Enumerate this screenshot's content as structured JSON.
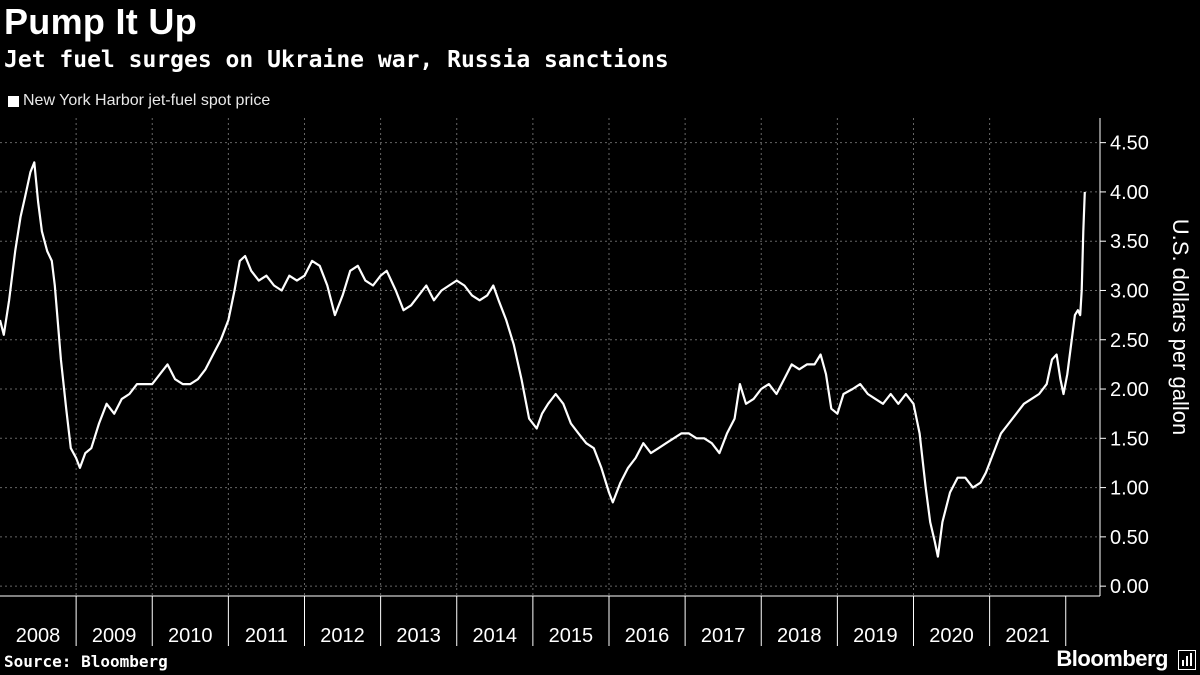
{
  "header": {
    "title": "Pump It Up",
    "subtitle": "Jet fuel surges on Ukraine war, Russia sanctions"
  },
  "footer": {
    "source": "Source: Bloomberg",
    "brand": "Bloomberg"
  },
  "colors": {
    "background": "#000000",
    "line": "#ffffff",
    "grid": "#666666"
  },
  "chart_data": {
    "type": "line",
    "series": [
      {
        "name": "New York Harbor jet-fuel spot price",
        "points": [
          [
            2008.0,
            2.7
          ],
          [
            2008.05,
            2.55
          ],
          [
            2008.12,
            2.9
          ],
          [
            2008.2,
            3.4
          ],
          [
            2008.27,
            3.75
          ],
          [
            2008.33,
            3.95
          ],
          [
            2008.4,
            4.2
          ],
          [
            2008.45,
            4.3
          ],
          [
            2008.5,
            3.9
          ],
          [
            2008.55,
            3.6
          ],
          [
            2008.62,
            3.4
          ],
          [
            2008.68,
            3.3
          ],
          [
            2008.72,
            3.05
          ],
          [
            2008.8,
            2.3
          ],
          [
            2008.87,
            1.8
          ],
          [
            2008.93,
            1.4
          ],
          [
            2009.0,
            1.3
          ],
          [
            2009.05,
            1.2
          ],
          [
            2009.12,
            1.35
          ],
          [
            2009.2,
            1.4
          ],
          [
            2009.3,
            1.65
          ],
          [
            2009.4,
            1.85
          ],
          [
            2009.5,
            1.75
          ],
          [
            2009.6,
            1.9
          ],
          [
            2009.7,
            1.95
          ],
          [
            2009.8,
            2.05
          ],
          [
            2009.9,
            2.05
          ],
          [
            2010.0,
            2.05
          ],
          [
            2010.1,
            2.15
          ],
          [
            2010.2,
            2.25
          ],
          [
            2010.3,
            2.1
          ],
          [
            2010.4,
            2.05
          ],
          [
            2010.5,
            2.05
          ],
          [
            2010.6,
            2.1
          ],
          [
            2010.7,
            2.2
          ],
          [
            2010.8,
            2.35
          ],
          [
            2010.9,
            2.5
          ],
          [
            2011.0,
            2.7
          ],
          [
            2011.08,
            3.0
          ],
          [
            2011.15,
            3.3
          ],
          [
            2011.22,
            3.35
          ],
          [
            2011.3,
            3.2
          ],
          [
            2011.4,
            3.1
          ],
          [
            2011.5,
            3.15
          ],
          [
            2011.6,
            3.05
          ],
          [
            2011.7,
            3.0
          ],
          [
            2011.8,
            3.15
          ],
          [
            2011.9,
            3.1
          ],
          [
            2012.0,
            3.15
          ],
          [
            2012.1,
            3.3
          ],
          [
            2012.2,
            3.25
          ],
          [
            2012.3,
            3.05
          ],
          [
            2012.4,
            2.75
          ],
          [
            2012.5,
            2.95
          ],
          [
            2012.6,
            3.2
          ],
          [
            2012.7,
            3.25
          ],
          [
            2012.8,
            3.1
          ],
          [
            2012.9,
            3.05
          ],
          [
            2013.0,
            3.15
          ],
          [
            2013.08,
            3.2
          ],
          [
            2013.2,
            3.0
          ],
          [
            2013.3,
            2.8
          ],
          [
            2013.4,
            2.85
          ],
          [
            2013.5,
            2.95
          ],
          [
            2013.6,
            3.05
          ],
          [
            2013.7,
            2.9
          ],
          [
            2013.8,
            3.0
          ],
          [
            2013.9,
            3.05
          ],
          [
            2014.0,
            3.1
          ],
          [
            2014.1,
            3.05
          ],
          [
            2014.2,
            2.95
          ],
          [
            2014.3,
            2.9
          ],
          [
            2014.4,
            2.95
          ],
          [
            2014.48,
            3.05
          ],
          [
            2014.55,
            2.9
          ],
          [
            2014.65,
            2.7
          ],
          [
            2014.75,
            2.45
          ],
          [
            2014.85,
            2.1
          ],
          [
            2014.95,
            1.7
          ],
          [
            2015.05,
            1.6
          ],
          [
            2015.12,
            1.75
          ],
          [
            2015.2,
            1.85
          ],
          [
            2015.3,
            1.95
          ],
          [
            2015.4,
            1.85
          ],
          [
            2015.5,
            1.65
          ],
          [
            2015.6,
            1.55
          ],
          [
            2015.7,
            1.45
          ],
          [
            2015.8,
            1.4
          ],
          [
            2015.9,
            1.2
          ],
          [
            2016.0,
            0.95
          ],
          [
            2016.05,
            0.85
          ],
          [
            2016.15,
            1.05
          ],
          [
            2016.25,
            1.2
          ],
          [
            2016.35,
            1.3
          ],
          [
            2016.45,
            1.45
          ],
          [
            2016.55,
            1.35
          ],
          [
            2016.65,
            1.4
          ],
          [
            2016.75,
            1.45
          ],
          [
            2016.85,
            1.5
          ],
          [
            2016.95,
            1.55
          ],
          [
            2017.05,
            1.55
          ],
          [
            2017.15,
            1.5
          ],
          [
            2017.25,
            1.5
          ],
          [
            2017.35,
            1.45
          ],
          [
            2017.45,
            1.35
          ],
          [
            2017.55,
            1.55
          ],
          [
            2017.65,
            1.7
          ],
          [
            2017.72,
            2.05
          ],
          [
            2017.8,
            1.85
          ],
          [
            2017.9,
            1.9
          ],
          [
            2018.0,
            2.0
          ],
          [
            2018.1,
            2.05
          ],
          [
            2018.2,
            1.95
          ],
          [
            2018.3,
            2.1
          ],
          [
            2018.4,
            2.25
          ],
          [
            2018.5,
            2.2
          ],
          [
            2018.6,
            2.25
          ],
          [
            2018.7,
            2.25
          ],
          [
            2018.78,
            2.35
          ],
          [
            2018.85,
            2.15
          ],
          [
            2018.92,
            1.8
          ],
          [
            2019.0,
            1.75
          ],
          [
            2019.08,
            1.95
          ],
          [
            2019.2,
            2.0
          ],
          [
            2019.3,
            2.05
          ],
          [
            2019.4,
            1.95
          ],
          [
            2019.5,
            1.9
          ],
          [
            2019.6,
            1.85
          ],
          [
            2019.7,
            1.95
          ],
          [
            2019.8,
            1.85
          ],
          [
            2019.9,
            1.95
          ],
          [
            2020.0,
            1.85
          ],
          [
            2020.08,
            1.55
          ],
          [
            2020.16,
            1.0
          ],
          [
            2020.22,
            0.65
          ],
          [
            2020.28,
            0.45
          ],
          [
            2020.32,
            0.3
          ],
          [
            2020.38,
            0.65
          ],
          [
            2020.48,
            0.95
          ],
          [
            2020.58,
            1.1
          ],
          [
            2020.68,
            1.1
          ],
          [
            2020.78,
            1.0
          ],
          [
            2020.88,
            1.05
          ],
          [
            2020.95,
            1.15
          ],
          [
            2021.05,
            1.35
          ],
          [
            2021.15,
            1.55
          ],
          [
            2021.25,
            1.65
          ],
          [
            2021.35,
            1.75
          ],
          [
            2021.45,
            1.85
          ],
          [
            2021.55,
            1.9
          ],
          [
            2021.65,
            1.95
          ],
          [
            2021.75,
            2.05
          ],
          [
            2021.82,
            2.3
          ],
          [
            2021.88,
            2.35
          ],
          [
            2021.93,
            2.1
          ],
          [
            2021.97,
            1.95
          ],
          [
            2022.02,
            2.15
          ],
          [
            2022.07,
            2.45
          ],
          [
            2022.12,
            2.75
          ],
          [
            2022.16,
            2.8
          ],
          [
            2022.19,
            2.75
          ],
          [
            2022.21,
            3.0
          ],
          [
            2022.23,
            3.6
          ],
          [
            2022.25,
            4.0
          ]
        ]
      }
    ],
    "x_tick_labels": [
      "2008",
      "2009",
      "2010",
      "2011",
      "2012",
      "2013",
      "2014",
      "2015",
      "2016",
      "2017",
      "2018",
      "2019",
      "2020",
      "2021"
    ],
    "y_tick_labels": [
      "0.00",
      "0.50",
      "1.00",
      "1.50",
      "2.00",
      "2.50",
      "3.00",
      "3.50",
      "4.00",
      "4.50"
    ],
    "y_ticks": [
      0,
      0.5,
      1,
      1.5,
      2,
      2.5,
      3,
      3.5,
      4,
      4.5
    ],
    "ylabel": "U.S. dollars per gallon",
    "xlim": [
      2008,
      2022.45
    ],
    "ylim": [
      -0.1,
      4.75
    ],
    "grid": true,
    "legend_position": "top-left"
  }
}
